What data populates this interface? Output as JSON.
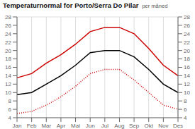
{
  "chart_data": {
    "type": "line",
    "title": "Temperaturnormal for Porto/Serra Do Pilar",
    "subtitle": "per måned",
    "categories": [
      "Jan",
      "Feb",
      "Mar",
      "Apr",
      "Mai",
      "Jun",
      "Jul",
      "Aug",
      "Sep",
      "Okt",
      "Nov",
      "Des"
    ],
    "series": [
      {
        "color": "#cc0000",
        "line_style": "solid",
        "values": [
          13.5,
          14.5,
          17.0,
          19.0,
          21.5,
          24.5,
          25.5,
          25.5,
          24.0,
          20.5,
          16.5,
          14.0
        ]
      },
      {
        "color": "#000000",
        "line_style": "solid",
        "values": [
          9.5,
          10.0,
          12.0,
          14.0,
          16.5,
          19.5,
          20.0,
          20.0,
          18.5,
          15.5,
          12.0,
          10.0
        ]
      },
      {
        "color": "#cc0000",
        "line_style": "dotted",
        "values": [
          5.0,
          5.5,
          7.0,
          9.0,
          11.5,
          14.5,
          15.5,
          15.5,
          13.0,
          10.0,
          7.0,
          6.0
        ]
      }
    ],
    "ylim": [
      4,
      28
    ],
    "yticks": [
      4,
      6,
      8,
      10,
      12,
      14,
      16,
      18,
      20,
      22,
      24,
      26,
      28
    ],
    "y2lim": [
      4,
      28
    ],
    "y2ticks": [
      4,
      6,
      8,
      10,
      12,
      14,
      16,
      18,
      20,
      22,
      24,
      26,
      28
    ],
    "grid": true
  }
}
